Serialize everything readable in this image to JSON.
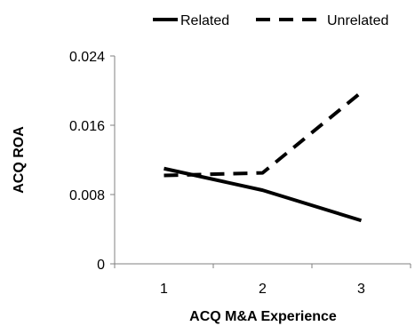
{
  "chart_data": {
    "type": "line",
    "categories": [
      "1",
      "2",
      "3"
    ],
    "series": [
      {
        "name": "Related",
        "values": [
          0.011,
          0.0085,
          0.005
        ],
        "line_style": "solid",
        "color": "#000000"
      },
      {
        "name": "Unrelated",
        "values": [
          0.0102,
          0.0105,
          0.0198
        ],
        "line_style": "dashed",
        "color": "#000000"
      }
    ],
    "xlabel": "ACQ M&A Experience",
    "ylabel": "ACQ ROA",
    "ylim": [
      0,
      0.024
    ],
    "yticks": [
      "0",
      "0.008",
      "0.016",
      "0.024"
    ],
    "grid": false,
    "legend_position": "top"
  }
}
